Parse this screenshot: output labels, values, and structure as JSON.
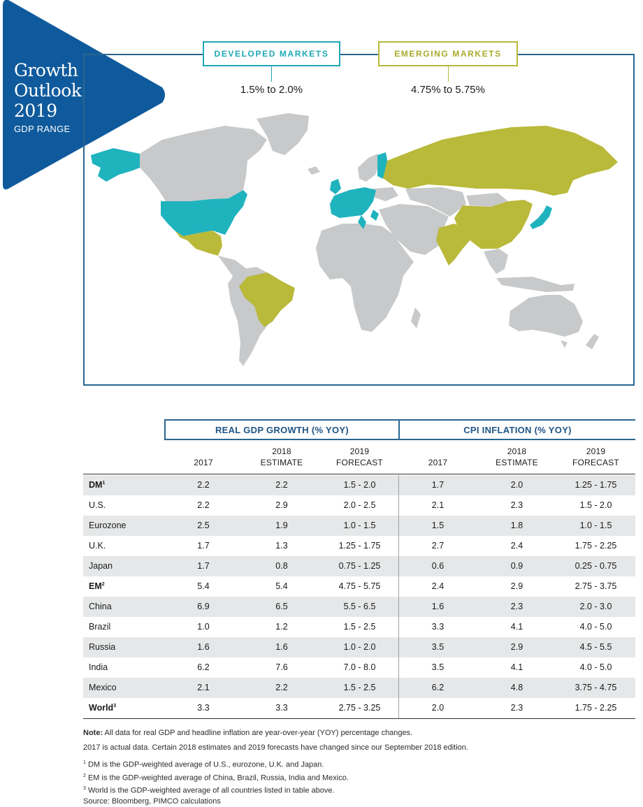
{
  "badge": {
    "title_lines": [
      "Growth",
      "Outlook",
      "2019"
    ],
    "subtitle": "GDP RANGE"
  },
  "markets": {
    "developed": {
      "label": "DEVELOPED MARKETS",
      "range": "1.5% to 2.0%"
    },
    "emerging": {
      "label": "EMERGING MARKETS",
      "range": "4.75% to 5.75%"
    }
  },
  "colors": {
    "brand_blue": "#0f5a9c",
    "developed": "#1fb3be",
    "emerging": "#b9b93a",
    "land": "#c8c9ca",
    "frame": "#2a6690"
  },
  "table": {
    "groups": [
      "REAL GDP GROWTH (% YOY)",
      "CPI INFLATION (% YOY)"
    ],
    "columns": [
      [
        "2017"
      ],
      [
        "2018",
        "ESTIMATE"
      ],
      [
        "2019",
        "FORECAST"
      ],
      [
        "2017"
      ],
      [
        "2018",
        "ESTIMATE"
      ],
      [
        "2019",
        "FORECAST"
      ]
    ],
    "rows": [
      {
        "label": "DM",
        "sup": "1",
        "bold": true,
        "values": [
          "2.2",
          "2.2",
          "1.5 - 2.0",
          "1.7",
          "2.0",
          "1.25 - 1.75"
        ]
      },
      {
        "label": "U.S.",
        "sup": "",
        "bold": false,
        "values": [
          "2.2",
          "2.9",
          "2.0 - 2.5",
          "2.1",
          "2.3",
          "1.5 - 2.0"
        ]
      },
      {
        "label": "Eurozone",
        "sup": "",
        "bold": false,
        "values": [
          "2.5",
          "1.9",
          "1.0 - 1.5",
          "1.5",
          "1.8",
          "1.0 - 1.5"
        ]
      },
      {
        "label": "U.K.",
        "sup": "",
        "bold": false,
        "values": [
          "1.7",
          "1.3",
          "1.25 - 1.75",
          "2.7",
          "2.4",
          "1.75 - 2.25"
        ]
      },
      {
        "label": "Japan",
        "sup": "",
        "bold": false,
        "values": [
          "1.7",
          "0.8",
          "0.75 - 1.25",
          "0.6",
          "0.9",
          "0.25 - 0.75"
        ]
      },
      {
        "label": "EM",
        "sup": "2",
        "bold": true,
        "values": [
          "5.4",
          "5.4",
          "4.75 - 5.75",
          "2.4",
          "2.9",
          "2.75 - 3.75"
        ]
      },
      {
        "label": "China",
        "sup": "",
        "bold": false,
        "values": [
          "6.9",
          "6.5",
          "5.5 - 6.5",
          "1.6",
          "2.3",
          "2.0 - 3.0"
        ]
      },
      {
        "label": "Brazil",
        "sup": "",
        "bold": false,
        "values": [
          "1.0",
          "1.2",
          "1.5 - 2.5",
          "3.3",
          "4.1",
          "4.0 - 5.0"
        ]
      },
      {
        "label": "Russia",
        "sup": "",
        "bold": false,
        "values": [
          "1.6",
          "1.6",
          "1.0 - 2.0",
          "3.5",
          "2.9",
          "4.5 - 5.5"
        ]
      },
      {
        "label": "India",
        "sup": "",
        "bold": false,
        "values": [
          "6.2",
          "7.6",
          "7.0 - 8.0",
          "3.5",
          "4.1",
          "4.0 - 5.0"
        ]
      },
      {
        "label": "Mexico",
        "sup": "",
        "bold": false,
        "values": [
          "2.1",
          "2.2",
          "1.5 - 2.5",
          "6.2",
          "4.8",
          "3.75 - 4.75"
        ]
      },
      {
        "label": "World",
        "sup": "3",
        "bold": true,
        "values": [
          "3.3",
          "3.3",
          "2.75 - 3.25",
          "2.0",
          "2.3",
          "1.75 - 2.25"
        ]
      }
    ]
  },
  "notes": {
    "note_label": "Note:",
    "note_text": " All data for real GDP and headline inflation are year-over-year (YOY) percentage changes.",
    "line2": "2017 is actual data. Certain 2018 estimates and 2019 forecasts have changed since our September 2018 edition.",
    "footnotes": [
      {
        "num": "1",
        "text": " DM is the GDP-weighted average of U.S., eurozone, U.K. and Japan."
      },
      {
        "num": "2",
        "text": " EM is the GDP-weighted average of China, Brazil, Russia, India and Mexico."
      },
      {
        "num": "3",
        "text": " World is the GDP-weighted average of all countries listed in table above."
      }
    ],
    "source": "Source: Bloomberg, PIMCO calculations"
  }
}
